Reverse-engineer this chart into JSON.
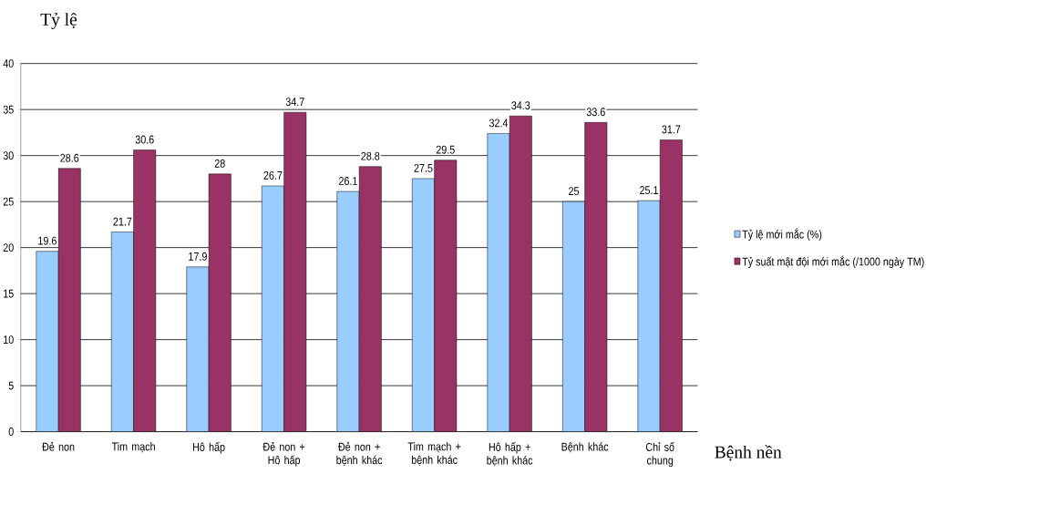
{
  "chart_data": {
    "type": "bar",
    "ylabel": "Tỷ lệ",
    "xlabel": "Bệnh nền",
    "categories": [
      "Đẻ non",
      "Tim mạch",
      "Hô hấp",
      "Đẻ non + Hô hấp",
      "Đẻ non + bệnh khác",
      "Tim mạch + bệnh khác",
      "Hô hấp + bệnh khác",
      "Bệnh khác",
      "Chỉ số chung"
    ],
    "series": [
      {
        "name": "Tỷ lệ mới mắc (%)",
        "color": "#99ccff",
        "values": [
          19.6,
          21.7,
          17.9,
          26.7,
          26.1,
          27.5,
          32.4,
          25,
          25.1
        ]
      },
      {
        "name": "Tỷ suất mật đội mới mắc (/1000 ngày TM)",
        "color": "#993366",
        "values": [
          28.6,
          30.6,
          28,
          34.7,
          28.8,
          29.5,
          34.3,
          33.6,
          31.7
        ]
      }
    ],
    "ylim": [
      0,
      40
    ],
    "yticks": [
      0,
      5,
      10,
      15,
      20,
      25,
      30,
      35,
      40
    ],
    "grid": "y",
    "legend": "right",
    "data_labels": true
  }
}
